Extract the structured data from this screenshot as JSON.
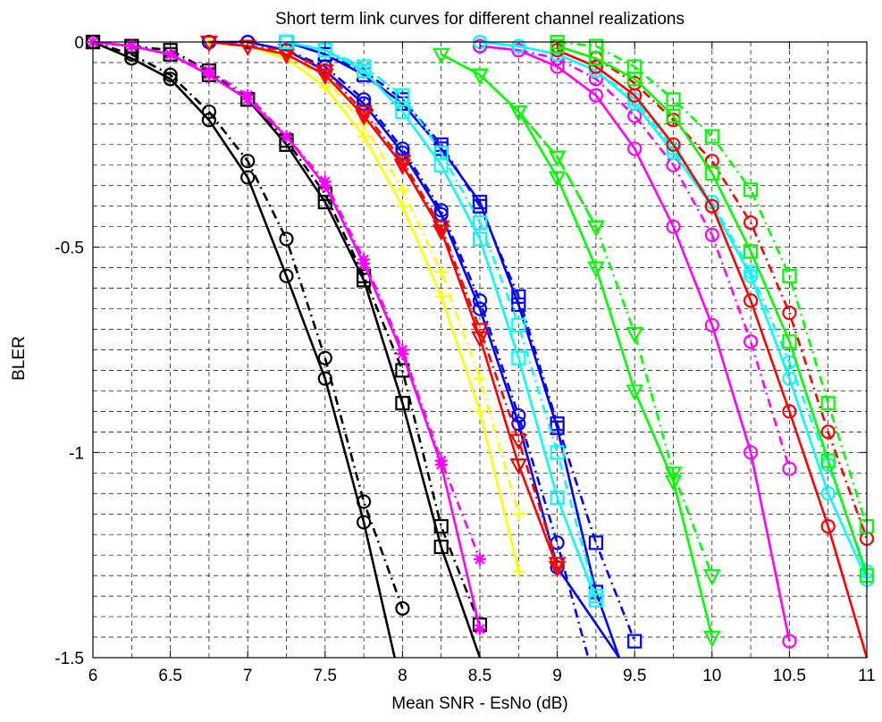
{
  "chart_data": {
    "type": "line",
    "title": "Short term link curves for different channel realizations",
    "xlabel": "Mean SNR - EsNo (dB)",
    "ylabel": "BLER",
    "xlim": [
      6,
      11
    ],
    "ylim": [
      -1.5,
      0
    ],
    "x_ticks": [
      6,
      6.5,
      7,
      7.5,
      8,
      8.5,
      9,
      9.5,
      10,
      10.5,
      11
    ],
    "y_ticks": [
      0,
      -0.5,
      -1,
      -1.5
    ],
    "x_tick_labels": [
      "6",
      "6.5",
      "7",
      "7.5",
      "8",
      "8.5",
      "9",
      "9.5",
      "10",
      "10.5",
      "11"
    ],
    "y_tick_labels": [
      "0",
      "-0.5",
      "-1",
      "-1.5"
    ],
    "grid": true,
    "grid_minor": true,
    "legend": "none",
    "series": [
      {
        "color": "#000000",
        "style": "solid",
        "marker": "circle",
        "x": [
          6,
          6.25,
          6.5,
          6.75,
          7,
          7.25,
          7.5,
          7.75,
          7.95
        ],
        "y": [
          0,
          -0.04,
          -0.09,
          -0.19,
          -0.33,
          -0.57,
          -0.82,
          -1.17,
          -1.5
        ]
      },
      {
        "color": "#000000",
        "style": "dashdot",
        "marker": "circle",
        "x": [
          6,
          6.25,
          6.5,
          6.75,
          7,
          7.25,
          7.5,
          7.75,
          8
        ],
        "y": [
          0,
          -0.03,
          -0.08,
          -0.17,
          -0.29,
          -0.48,
          -0.77,
          -1.12,
          -1.38
        ]
      },
      {
        "color": "#000000",
        "style": "solid",
        "marker": "square",
        "x": [
          6,
          6.25,
          6.5,
          6.75,
          7,
          7.25,
          7.5,
          7.75,
          8,
          8.25,
          8.5
        ],
        "y": [
          0,
          -0.01,
          -0.03,
          -0.08,
          -0.14,
          -0.25,
          -0.39,
          -0.58,
          -0.88,
          -1.23,
          -1.5
        ]
      },
      {
        "color": "#000000",
        "style": "dashdot",
        "marker": "square",
        "x": [
          6,
          6.25,
          6.5,
          6.75,
          7,
          7.25,
          7.5,
          7.75,
          8,
          8.25,
          8.5
        ],
        "y": [
          0,
          -0.01,
          -0.02,
          -0.07,
          -0.14,
          -0.24,
          -0.37,
          -0.57,
          -0.8,
          -1.18,
          -1.42
        ]
      },
      {
        "color": "#ff00ff",
        "style": "solid",
        "marker": "star",
        "x": [
          6,
          6.25,
          6.5,
          6.75,
          7,
          7.25,
          7.5,
          7.75,
          8,
          8.25,
          8.5
        ],
        "y": [
          0,
          -0.01,
          -0.03,
          -0.08,
          -0.14,
          -0.23,
          -0.35,
          -0.54,
          -0.76,
          -1.03,
          -1.43
        ]
      },
      {
        "color": "#ff00ff",
        "style": "dashdot",
        "marker": "star",
        "x": [
          6,
          6.25,
          6.5,
          6.75,
          7,
          7.25,
          7.5,
          7.75,
          8,
          8.25,
          8.5
        ],
        "y": [
          0,
          -0.01,
          -0.03,
          -0.07,
          -0.13,
          -0.23,
          -0.34,
          -0.53,
          -0.75,
          -1.02,
          -1.26
        ]
      },
      {
        "color": "#ffff00",
        "style": "solid",
        "marker": "plus",
        "x": [
          6.75,
          7,
          7.25,
          7.5,
          7.75,
          8,
          8.25,
          8.5,
          8.75
        ],
        "y": [
          0,
          -0.01,
          -0.04,
          -0.11,
          -0.23,
          -0.4,
          -0.62,
          -0.9,
          -1.29
        ]
      },
      {
        "color": "#ffff00",
        "style": "dashdot",
        "marker": "plus",
        "x": [
          6.75,
          7,
          7.25,
          7.5,
          7.75,
          8,
          8.25,
          8.5,
          8.75
        ],
        "y": [
          0,
          -0.01,
          -0.03,
          -0.09,
          -0.2,
          -0.36,
          -0.56,
          -0.82,
          -1.15
        ]
      },
      {
        "color": "#0000ff",
        "style": "solid",
        "marker": "circle",
        "x": [
          6.75,
          7,
          7.25,
          7.5,
          7.75,
          8,
          8.25,
          8.5,
          8.75,
          9,
          9.4
        ],
        "y": [
          0,
          0,
          -0.02,
          -0.07,
          -0.15,
          -0.27,
          -0.42,
          -0.65,
          -0.93,
          -1.28,
          -1.5
        ]
      },
      {
        "color": "#0000ff",
        "style": "dashdot",
        "marker": "circle",
        "x": [
          6.75,
          7,
          7.25,
          7.5,
          7.75,
          8,
          8.25,
          8.5,
          8.75,
          9,
          9.2
        ],
        "y": [
          0,
          0,
          -0.02,
          -0.06,
          -0.14,
          -0.26,
          -0.41,
          -0.63,
          -0.91,
          -1.22,
          -1.5
        ]
      },
      {
        "color": "#ff0000",
        "style": "solid",
        "marker": "triangle-down",
        "x": [
          6.75,
          7,
          7.25,
          7.5,
          7.75,
          8,
          8.25,
          8.5,
          8.75,
          9
        ],
        "y": [
          0,
          -0.01,
          -0.03,
          -0.08,
          -0.18,
          -0.3,
          -0.46,
          -0.72,
          -1.03,
          -1.28
        ]
      },
      {
        "color": "#ff0000",
        "style": "dashdot",
        "marker": "triangle-down",
        "x": [
          6.75,
          7,
          7.25,
          7.5,
          7.75,
          8,
          8.25,
          8.5,
          8.75,
          9
        ],
        "y": [
          0,
          -0.01,
          -0.02,
          -0.07,
          -0.17,
          -0.29,
          -0.45,
          -0.7,
          -0.97,
          -1.27
        ]
      },
      {
        "color": "#0000ff",
        "style": "solid",
        "marker": "square",
        "x": [
          7.25,
          7.5,
          7.75,
          8,
          8.25,
          8.5,
          8.75,
          9,
          9.25,
          9.4
        ],
        "y": [
          0,
          -0.03,
          -0.08,
          -0.15,
          -0.26,
          -0.39,
          -0.64,
          -0.94,
          -1.34,
          -1.5
        ]
      },
      {
        "color": "#0000ff",
        "style": "dashdot",
        "marker": "square",
        "x": [
          7.25,
          7.5,
          7.75,
          8,
          8.25,
          8.5,
          8.75,
          9,
          9.25,
          9.5
        ],
        "y": [
          0,
          -0.03,
          -0.07,
          -0.14,
          -0.25,
          -0.4,
          -0.62,
          -0.93,
          -1.22,
          -1.46
        ]
      },
      {
        "color": "#00ffff",
        "style": "solid",
        "marker": "square",
        "x": [
          7.25,
          7.5,
          7.75,
          8,
          8.25,
          8.5,
          8.75,
          9,
          9.25
        ],
        "y": [
          0,
          -0.02,
          -0.07,
          -0.17,
          -0.3,
          -0.48,
          -0.77,
          -1.11,
          -1.36
        ]
      },
      {
        "color": "#00ffff",
        "style": "dashdot",
        "marker": "square",
        "x": [
          7.25,
          7.5,
          7.75,
          8,
          8.25,
          8.5,
          8.75,
          9,
          9.25
        ],
        "y": [
          0,
          -0.02,
          -0.06,
          -0.13,
          -0.27,
          -0.44,
          -0.69,
          -1.0,
          -1.35
        ]
      },
      {
        "color": "#00ff00",
        "style": "solid",
        "marker": "triangle-down",
        "x": [
          8.25,
          8.5,
          8.75,
          9,
          9.25,
          9.5,
          9.75,
          10
        ],
        "y": [
          -0.03,
          -0.08,
          -0.17,
          -0.33,
          -0.55,
          -0.85,
          -1.07,
          -1.45
        ]
      },
      {
        "color": "#00ff00",
        "style": "dashdot",
        "marker": "triangle-down",
        "x": [
          8.75,
          9,
          9.25,
          9.5,
          9.75,
          10
        ],
        "y": [
          -0.17,
          -0.28,
          -0.45,
          -0.71,
          -1.05,
          -1.3
        ]
      },
      {
        "color": "#00ff00",
        "style": "dashdot",
        "marker": "triangle-down",
        "x": [
          8.5,
          8.75,
          9,
          9.25
        ],
        "y": [
          -0.08,
          -0.17,
          -0.28,
          -0.45
        ]
      },
      {
        "color": "#ff00ff",
        "style": "solid",
        "marker": "circle",
        "x": [
          8.5,
          8.75,
          9,
          9.25,
          9.5,
          9.75,
          10,
          10.25,
          10.5
        ],
        "y": [
          -0.01,
          -0.02,
          -0.06,
          -0.13,
          -0.26,
          -0.45,
          -0.69,
          -1.0,
          -1.46
        ]
      },
      {
        "color": "#ff00ff",
        "style": "dashdot",
        "marker": "circle",
        "x": [
          8.5,
          8.75,
          9,
          9.25,
          9.5,
          9.75,
          10,
          10.25,
          10.5
        ],
        "y": [
          -0.01,
          -0.02,
          -0.04,
          -0.09,
          -0.18,
          -0.3,
          -0.47,
          -0.73,
          -1.04
        ]
      },
      {
        "color": "#00ffff",
        "style": "solid",
        "marker": "circle",
        "x": [
          8.5,
          8.75,
          9,
          9.25,
          9.5,
          9.75,
          10,
          10.25,
          10.5,
          10.75,
          11
        ],
        "y": [
          0,
          -0.01,
          -0.03,
          -0.07,
          -0.15,
          -0.27,
          -0.4,
          -0.57,
          -0.82,
          -1.1,
          -1.31
        ]
      },
      {
        "color": "#00ffff",
        "style": "dashdot",
        "marker": "circle",
        "x": [
          8.5,
          8.75,
          9,
          9.25,
          9.5,
          9.75,
          10,
          10.25,
          10.5,
          10.75,
          11
        ],
        "y": [
          0,
          -0.01,
          -0.03,
          -0.07,
          -0.14,
          -0.26,
          -0.39,
          -0.56,
          -0.78,
          -1.03,
          -1.29
        ]
      },
      {
        "color": "#ff0000",
        "style": "solid",
        "marker": "circle",
        "x": [
          9,
          9.25,
          9.5,
          9.75,
          10,
          10.25,
          10.5,
          10.75,
          11
        ],
        "y": [
          -0.02,
          -0.06,
          -0.13,
          -0.25,
          -0.4,
          -0.63,
          -0.9,
          -1.18,
          -1.5
        ]
      },
      {
        "color": "#ff0000",
        "style": "dashdot",
        "marker": "circle",
        "x": [
          9,
          9.25,
          9.5,
          9.75,
          10,
          10.25,
          10.5,
          10.75,
          11
        ],
        "y": [
          -0.01,
          -0.04,
          -0.1,
          -0.19,
          -0.29,
          -0.44,
          -0.66,
          -0.95,
          -1.21
        ]
      },
      {
        "color": "#00ff00",
        "style": "solid",
        "marker": "square",
        "x": [
          9,
          9.25,
          9.5,
          9.75,
          10,
          10.25,
          10.5,
          10.75,
          11
        ],
        "y": [
          -0.01,
          -0.04,
          -0.09,
          -0.18,
          -0.32,
          -0.51,
          -0.73,
          -1.02,
          -1.3
        ]
      },
      {
        "color": "#00ff00",
        "style": "dashdot",
        "marker": "square",
        "x": [
          9,
          9.25,
          9.5,
          9.75,
          10,
          10.25,
          10.5,
          10.75,
          11
        ],
        "y": [
          0,
          -0.01,
          -0.06,
          -0.14,
          -0.23,
          -0.36,
          -0.57,
          -0.88,
          -1.18
        ]
      }
    ]
  }
}
